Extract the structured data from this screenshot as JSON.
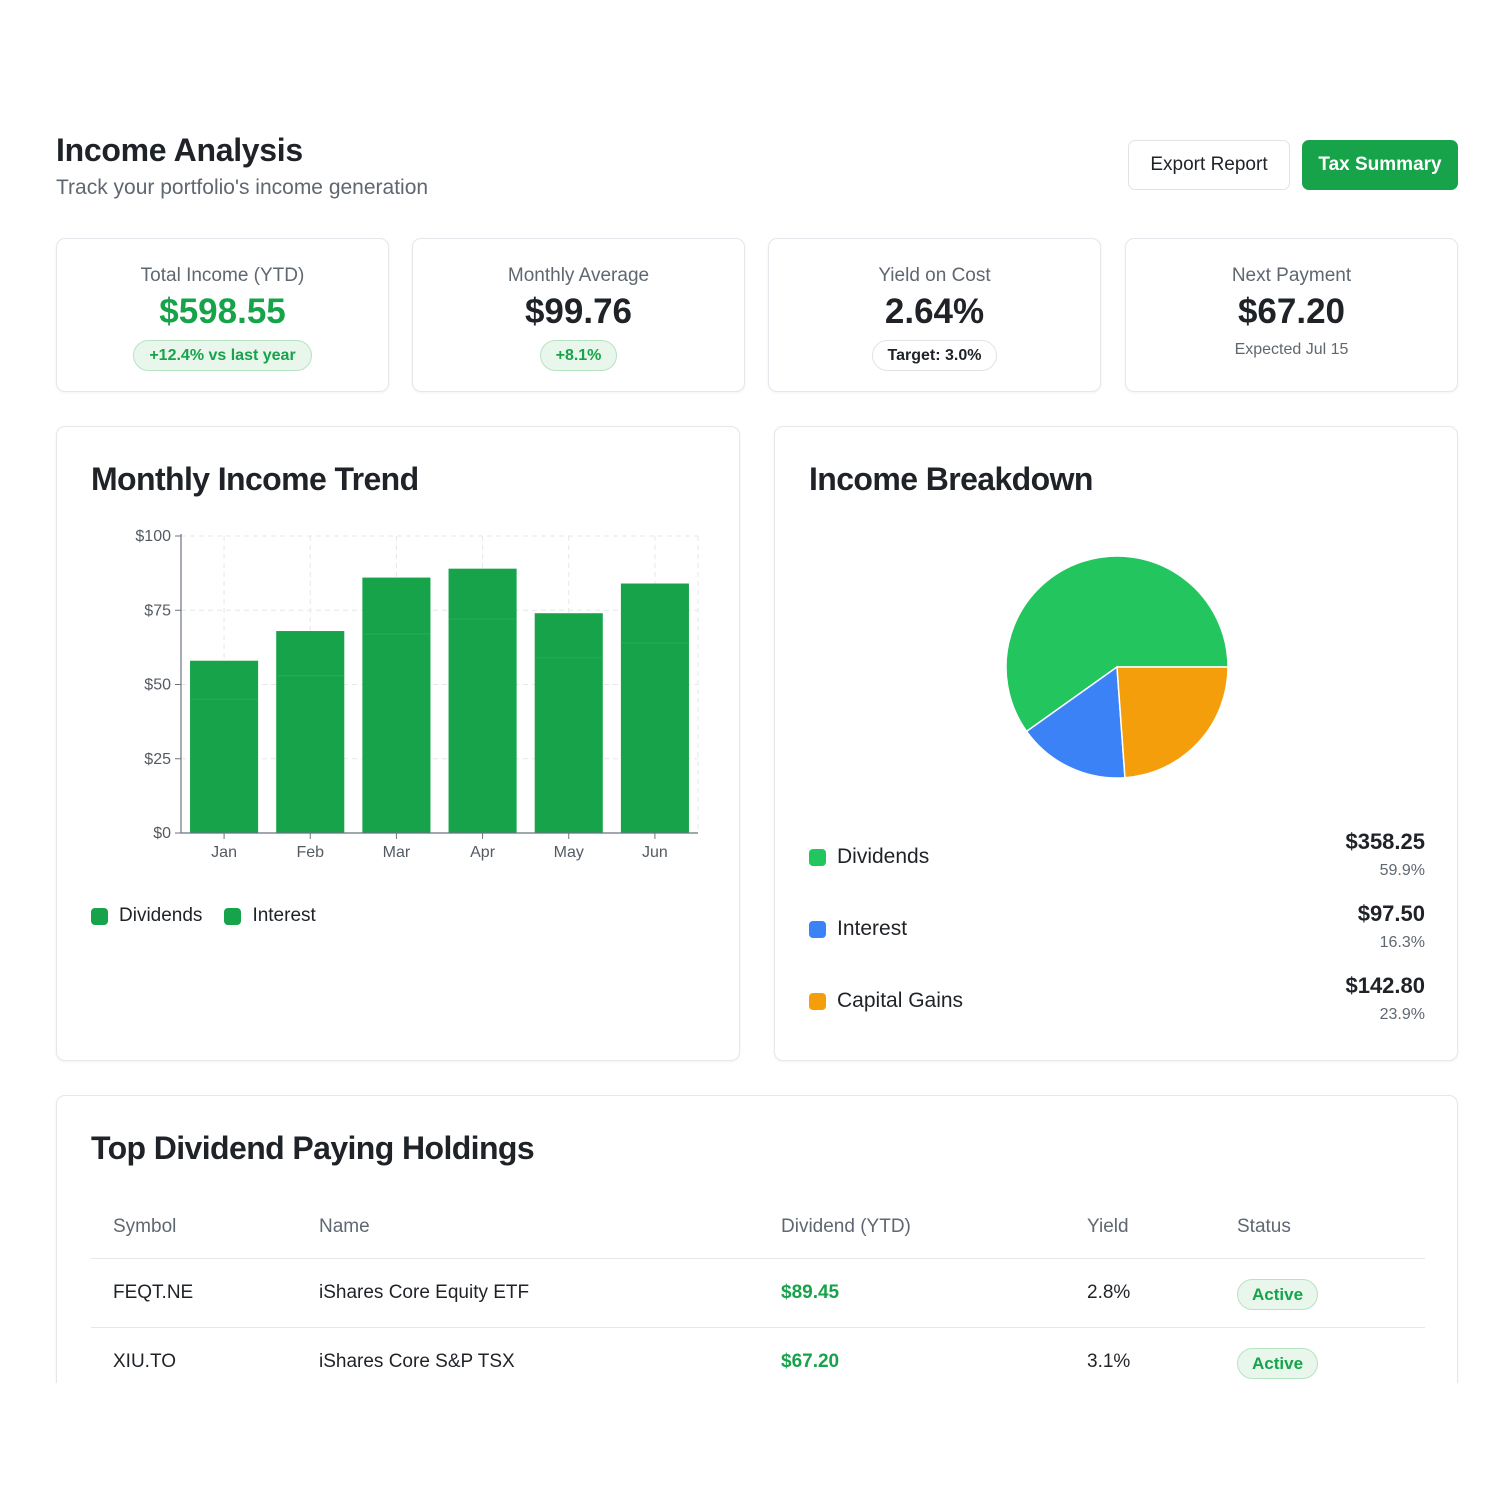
{
  "header": {
    "title": "Income Analysis",
    "subtitle": "Track your portfolio's income generation",
    "export_label": "Export Report",
    "tax_label": "Tax Summary"
  },
  "stats": [
    {
      "label": "Total Income (YTD)",
      "value": "$598.55",
      "badge": "+12.4% vs last year"
    },
    {
      "label": "Monthly Average",
      "value": "$99.76",
      "badge": "+8.1%"
    },
    {
      "label": "Yield on Cost",
      "value": "2.64%",
      "badge": "Target: 3.0%"
    },
    {
      "label": "Next Payment",
      "value": "$67.20",
      "note": "Expected Jul 15"
    }
  ],
  "trend": {
    "title": "Monthly Income Trend",
    "legend": [
      "Dividends",
      "Interest"
    ]
  },
  "breakdown": {
    "title": "Income Breakdown",
    "items": [
      {
        "name": "Dividends",
        "amount": "$358.25",
        "pct": "59.9%"
      },
      {
        "name": "Interest",
        "amount": "$97.50",
        "pct": "16.3%"
      },
      {
        "name": "Capital Gains",
        "amount": "$142.80",
        "pct": "23.9%"
      }
    ]
  },
  "holdings": {
    "title": "Top Dividend Paying Holdings",
    "columns": [
      "Symbol",
      "Name",
      "Dividend (YTD)",
      "Yield",
      "Status"
    ],
    "rows": [
      {
        "symbol": "FEQT.NE",
        "name": "iShares Core Equity ETF",
        "dividend": "$89.45",
        "yield": "2.8%",
        "status": "Active"
      },
      {
        "symbol": "XIU.TO",
        "name": "iShares Core S&P TSX",
        "dividend": "$67.20",
        "yield": "3.1%",
        "status": "Active"
      }
    ]
  },
  "colors": {
    "accent": "#16a34a",
    "bar": "#16a34a",
    "dividends": "#22c55e",
    "interest": "#3b82f6",
    "capital_gains": "#f59e0b"
  },
  "chart_data": [
    {
      "type": "bar",
      "stacked": true,
      "categories": [
        "Jan",
        "Feb",
        "Mar",
        "Apr",
        "May",
        "Jun"
      ],
      "series": [
        {
          "name": "Dividends",
          "values": [
            45,
            53,
            67,
            72,
            59,
            64
          ]
        },
        {
          "name": "Interest",
          "values": [
            13,
            15,
            19,
            17,
            15,
            20
          ]
        }
      ],
      "ylim": [
        0,
        100
      ],
      "yticks": [
        "$0",
        "$25",
        "$50",
        "$75",
        "$100"
      ],
      "grid": true
    },
    {
      "type": "pie",
      "categories": [
        "Dividends",
        "Interest",
        "Capital Gains"
      ],
      "values": [
        358.25,
        97.5,
        142.8
      ]
    }
  ]
}
